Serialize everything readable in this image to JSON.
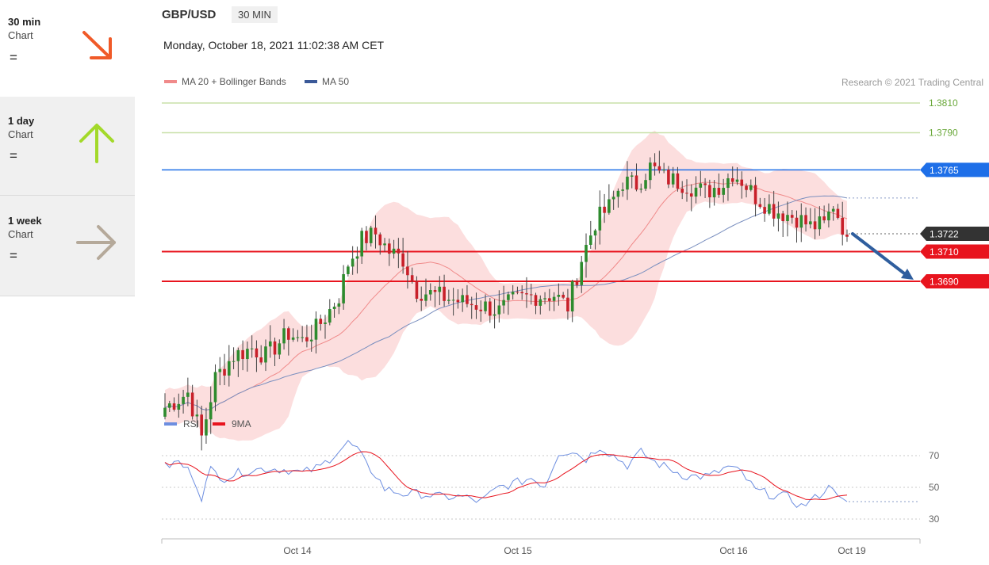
{
  "sidebar": {
    "items": [
      {
        "label": "30 min",
        "sub": "Chart",
        "sign": "=",
        "trend": "down",
        "color": "#f05a28"
      },
      {
        "label": "1 day",
        "sub": "Chart",
        "sign": "=",
        "trend": "up",
        "color": "#a3d92a"
      },
      {
        "label": "1 week",
        "sub": "Chart",
        "sign": "=",
        "trend": "sideways",
        "color": "#b5a99a"
      }
    ]
  },
  "header": {
    "pair": "GBP/USD",
    "timeframe": "30 MIN",
    "datetime": "Monday, October 18, 2021 11:02:38 AM CET"
  },
  "chart_data": {
    "type": "candlestick",
    "legend": [
      {
        "name": "MA 20 + Bollinger Bands",
        "color": "#f08a8a"
      },
      {
        "name": "MA 50",
        "color": "#3b5998"
      }
    ],
    "credit": "Research © 2021 Trading Central",
    "ylim": [
      1.3567,
      1.382
    ],
    "levels": [
      {
        "value": 1.381,
        "label": "1.3810",
        "kind": "target",
        "color": "#c8e0a8",
        "text_color": "#6aa83a"
      },
      {
        "value": 1.379,
        "label": "1.3790",
        "kind": "target",
        "color": "#c8e0a8",
        "text_color": "#6aa83a"
      },
      {
        "value": 1.3765,
        "label": "1.3765",
        "kind": "pivot",
        "color": "#1e6fe8"
      },
      {
        "value": 1.3722,
        "label": "1.3722",
        "kind": "last",
        "color": "#333333"
      },
      {
        "value": 1.371,
        "label": "1.3710",
        "kind": "support",
        "color": "#e8141e"
      },
      {
        "value": 1.369,
        "label": "1.3690",
        "kind": "support",
        "color": "#e8141e"
      }
    ],
    "x_labels": [
      "Oct 14",
      "Oct 15",
      "Oct 16",
      "Oct 19"
    ],
    "price_anchors": [
      [
        0,
        1.3605
      ],
      [
        5,
        1.3615
      ],
      [
        8,
        1.3585
      ],
      [
        11,
        1.3625
      ],
      [
        15,
        1.364
      ],
      [
        19,
        1.3645
      ],
      [
        22,
        1.364
      ],
      [
        27,
        1.3655
      ],
      [
        30,
        1.365
      ],
      [
        33,
        1.3658
      ],
      [
        35,
        1.3666
      ],
      [
        38,
        1.368
      ],
      [
        40,
        1.3702
      ],
      [
        43,
        1.3718
      ],
      [
        46,
        1.3722
      ],
      [
        49,
        1.371
      ],
      [
        52,
        1.3705
      ],
      [
        55,
        1.3684
      ],
      [
        60,
        1.368
      ],
      [
        65,
        1.3676
      ],
      [
        70,
        1.3673
      ],
      [
        73,
        1.367
      ],
      [
        76,
        1.3677
      ],
      [
        80,
        1.368
      ],
      [
        85,
        1.3681
      ],
      [
        88,
        1.3673
      ],
      [
        91,
        1.3705
      ],
      [
        94,
        1.373
      ],
      [
        97,
        1.374
      ],
      [
        100,
        1.3757
      ],
      [
        103,
        1.3755
      ],
      [
        106,
        1.3767
      ],
      [
        109,
        1.376
      ],
      [
        114,
        1.3755
      ],
      [
        118,
        1.375
      ],
      [
        122,
        1.3756
      ],
      [
        124,
        1.3763
      ],
      [
        126,
        1.3758
      ],
      [
        129,
        1.3747
      ],
      [
        133,
        1.3738
      ],
      [
        138,
        1.3733
      ],
      [
        141,
        1.3727
      ],
      [
        144,
        1.3728
      ],
      [
        146,
        1.3742
      ],
      [
        149,
        1.372
      ]
    ],
    "rsi": {
      "legend": [
        {
          "name": "RSI",
          "color": "#6d8ee0"
        },
        {
          "name": "9MA",
          "color": "#e8141e"
        }
      ],
      "ylim": [
        20,
        85
      ],
      "ticks": [
        70,
        50,
        30
      ],
      "anchors": [
        [
          0,
          63
        ],
        [
          3,
          66
        ],
        [
          6,
          58
        ],
        [
          8,
          44
        ],
        [
          10,
          61
        ],
        [
          13,
          56
        ],
        [
          16,
          59
        ],
        [
          19,
          61
        ],
        [
          23,
          62
        ],
        [
          27,
          61
        ],
        [
          30,
          59
        ],
        [
          34,
          63
        ],
        [
          37,
          71
        ],
        [
          40,
          78
        ],
        [
          42,
          74
        ],
        [
          44,
          64
        ],
        [
          46,
          58
        ],
        [
          48,
          49
        ],
        [
          52,
          46
        ],
        [
          56,
          46
        ],
        [
          60,
          44
        ],
        [
          65,
          44
        ],
        [
          69,
          41
        ],
        [
          73,
          50
        ],
        [
          77,
          53
        ],
        [
          80,
          56
        ],
        [
          83,
          51
        ],
        [
          86,
          72
        ],
        [
          89,
          73
        ],
        [
          92,
          68
        ],
        [
          95,
          76
        ],
        [
          98,
          70
        ],
        [
          101,
          64
        ],
        [
          104,
          72
        ],
        [
          107,
          66
        ],
        [
          110,
          62
        ],
        [
          114,
          57
        ],
        [
          119,
          57
        ],
        [
          123,
          63
        ],
        [
          126,
          59
        ],
        [
          129,
          48
        ],
        [
          133,
          45
        ],
        [
          136,
          44
        ],
        [
          139,
          38
        ],
        [
          142,
          43
        ],
        [
          144,
          48
        ],
        [
          146,
          51
        ],
        [
          148,
          43
        ],
        [
          149,
          41
        ]
      ]
    }
  }
}
